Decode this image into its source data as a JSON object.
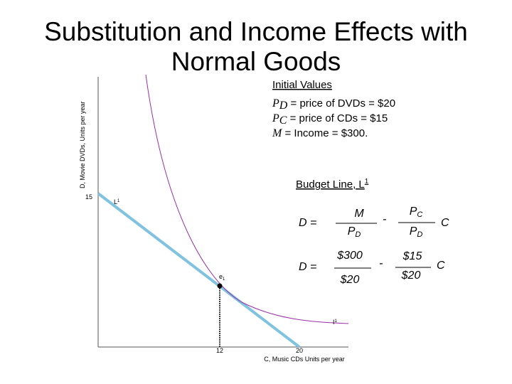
{
  "title": "Substitution and Income Effects with Normal Goods",
  "y_axis_label": "D, Movie DVDs, Units per year",
  "x_axis_label": "C, Music CDs Units per year",
  "y_tick": "15",
  "x_ticks": [
    "12",
    "20"
  ],
  "initial_values": {
    "heading": "Initial Values",
    "lines": [
      {
        "symbol": "P",
        "sub": "D",
        "text": " = price of DVDs = $20"
      },
      {
        "symbol": "P",
        "sub": "C",
        "text": " = price of CDs = $15"
      },
      {
        "symbol": "M",
        "text": " = Income = $300."
      }
    ]
  },
  "budget_line_label": {
    "text": "Budget Line, L",
    "sup": "1"
  },
  "curve_labels": {
    "budget": {
      "text": "L",
      "sup": "1"
    },
    "point": {
      "text": "e",
      "sub": "1"
    },
    "indifference": {
      "text": "I",
      "sup": "1"
    }
  },
  "equations": [
    {
      "lhs": "D =",
      "num1": "M",
      "den1_base": "P",
      "den1_sub": "D",
      "minus": "-",
      "num2_base": "P",
      "num2_sub": "C",
      "den2_base": "P",
      "den2_sub": "D",
      "var": "C"
    },
    {
      "lhs": "D =",
      "num1": "$300",
      "den1": "$20",
      "minus": "-",
      "num2": "$15",
      "den2": "$20",
      "var": "C"
    }
  ]
}
